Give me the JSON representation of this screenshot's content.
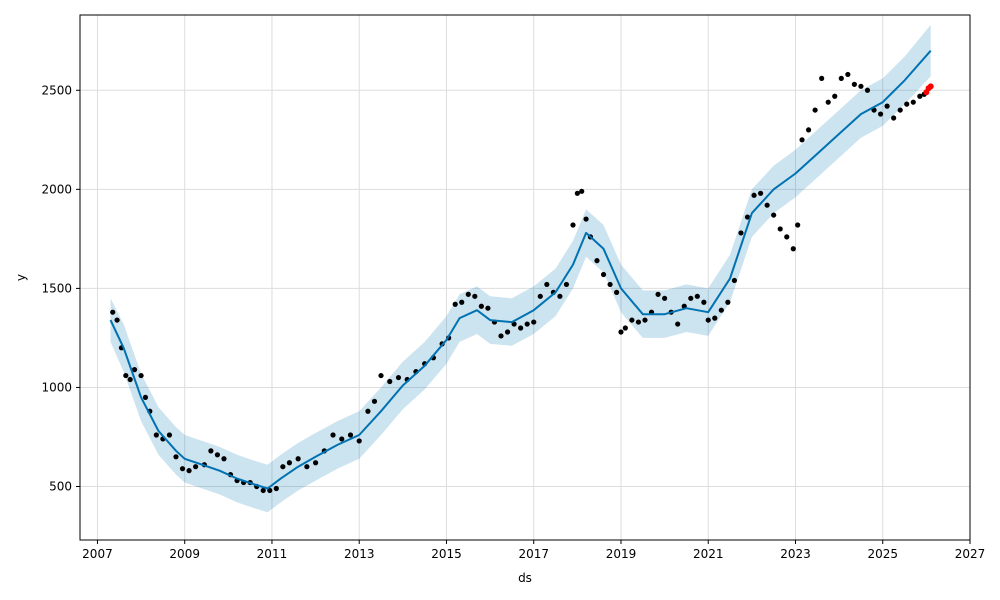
{
  "chart_data": {
    "type": "line",
    "title": "",
    "xlabel": "ds",
    "ylabel": "y",
    "xlim": [
      2006.6,
      2027.0
    ],
    "ylim": [
      230,
      2880
    ],
    "x_ticks": [
      {
        "value": 2007,
        "label": "2007"
      },
      {
        "value": 2009,
        "label": "2009"
      },
      {
        "value": 2011,
        "label": "2011"
      },
      {
        "value": 2013,
        "label": "2013"
      },
      {
        "value": 2015,
        "label": "2015"
      },
      {
        "value": 2017,
        "label": "2017"
      },
      {
        "value": 2019,
        "label": "2019"
      },
      {
        "value": 2021,
        "label": "2021"
      },
      {
        "value": 2023,
        "label": "2023"
      },
      {
        "value": 2025,
        "label": "2025"
      },
      {
        "value": 2027,
        "label": "2027"
      }
    ],
    "y_ticks": [
      {
        "value": 500,
        "label": "500"
      },
      {
        "value": 1000,
        "label": "1000"
      },
      {
        "value": 1500,
        "label": "1500"
      },
      {
        "value": 2000,
        "label": "2000"
      },
      {
        "value": 2500,
        "label": "2500"
      }
    ],
    "grid": true,
    "colors": {
      "forecast_line": "#0072B2",
      "uncertainty_band": "#0072B2",
      "actual_points": "#000000",
      "recent_points": "#ff0000"
    },
    "series": [
      {
        "role": "forecast",
        "x": [
          2007.3,
          2007.6,
          2008.0,
          2008.4,
          2008.8,
          2009.0,
          2009.4,
          2009.8,
          2010.2,
          2010.6,
          2010.9,
          2011.2,
          2011.6,
          2012.0,
          2012.5,
          2013.0,
          2013.5,
          2014.0,
          2014.5,
          2015.0,
          2015.3,
          2015.7,
          2016.0,
          2016.5,
          2017.0,
          2017.5,
          2017.9,
          2018.2,
          2018.6,
          2019.0,
          2019.5,
          2020.0,
          2020.5,
          2021.0,
          2021.5,
          2022.0,
          2022.5,
          2023.0,
          2023.5,
          2024.0,
          2024.5,
          2025.0,
          2025.5,
          2026.1
        ],
        "y": [
          1340,
          1200,
          950,
          780,
          680,
          640,
          610,
          580,
          540,
          510,
          490,
          540,
          600,
          650,
          710,
          760,
          880,
          1010,
          1110,
          1240,
          1350,
          1390,
          1340,
          1330,
          1390,
          1480,
          1620,
          1780,
          1700,
          1500,
          1370,
          1370,
          1400,
          1380,
          1550,
          1880,
          2000,
          2080,
          2180,
          2280,
          2380,
          2440,
          2550,
          2700
        ]
      },
      {
        "role": "uncertainty_upper",
        "x": [
          2007.3,
          2007.6,
          2008.0,
          2008.4,
          2008.8,
          2009.0,
          2009.4,
          2009.8,
          2010.2,
          2010.6,
          2010.9,
          2011.2,
          2011.6,
          2012.0,
          2012.5,
          2013.0,
          2013.5,
          2014.0,
          2014.5,
          2015.0,
          2015.3,
          2015.7,
          2016.0,
          2016.5,
          2017.0,
          2017.5,
          2017.9,
          2018.2,
          2018.6,
          2019.0,
          2019.5,
          2020.0,
          2020.5,
          2021.0,
          2021.5,
          2022.0,
          2022.5,
          2023.0,
          2023.5,
          2024.0,
          2024.5,
          2025.0,
          2025.5,
          2026.1
        ],
        "y": [
          1450,
          1320,
          1070,
          900,
          800,
          760,
          730,
          700,
          660,
          630,
          610,
          660,
          720,
          770,
          830,
          880,
          1000,
          1130,
          1230,
          1360,
          1470,
          1510,
          1460,
          1450,
          1510,
          1600,
          1740,
          1900,
          1820,
          1620,
          1490,
          1490,
          1520,
          1500,
          1670,
          2000,
          2120,
          2200,
          2300,
          2400,
          2500,
          2560,
          2670,
          2830
        ]
      },
      {
        "role": "uncertainty_lower",
        "x": [
          2007.3,
          2007.6,
          2008.0,
          2008.4,
          2008.8,
          2009.0,
          2009.4,
          2009.8,
          2010.2,
          2010.6,
          2010.9,
          2011.2,
          2011.6,
          2012.0,
          2012.5,
          2013.0,
          2013.5,
          2014.0,
          2014.5,
          2015.0,
          2015.3,
          2015.7,
          2016.0,
          2016.5,
          2017.0,
          2017.5,
          2017.9,
          2018.2,
          2018.6,
          2019.0,
          2019.5,
          2020.0,
          2020.5,
          2021.0,
          2021.5,
          2022.0,
          2022.5,
          2023.0,
          2023.5,
          2024.0,
          2024.5,
          2025.0,
          2025.5,
          2026.1
        ],
        "y": [
          1230,
          1080,
          830,
          660,
          560,
          520,
          490,
          460,
          420,
          390,
          370,
          420,
          480,
          530,
          590,
          640,
          760,
          890,
          990,
          1120,
          1230,
          1270,
          1220,
          1210,
          1270,
          1360,
          1500,
          1660,
          1580,
          1380,
          1250,
          1250,
          1280,
          1260,
          1430,
          1760,
          1880,
          1960,
          2060,
          2160,
          2260,
          2320,
          2430,
          2570
        ]
      },
      {
        "role": "actual",
        "x": [
          2007.35,
          2007.45,
          2007.55,
          2007.65,
          2007.75,
          2007.85,
          2008.0,
          2008.1,
          2008.2,
          2008.35,
          2008.5,
          2008.65,
          2008.8,
          2008.95,
          2009.1,
          2009.25,
          2009.45,
          2009.6,
          2009.75,
          2009.9,
          2010.05,
          2010.2,
          2010.35,
          2010.5,
          2010.65,
          2010.8,
          2010.95,
          2011.1,
          2011.25,
          2011.4,
          2011.6,
          2011.8,
          2012.0,
          2012.2,
          2012.4,
          2012.6,
          2012.8,
          2013.0,
          2013.2,
          2013.35,
          2013.5,
          2013.7,
          2013.9,
          2014.1,
          2014.3,
          2014.5,
          2014.7,
          2014.9,
          2015.05,
          2015.2,
          2015.35,
          2015.5,
          2015.65,
          2015.8,
          2015.95,
          2016.1,
          2016.25,
          2016.4,
          2016.55,
          2016.7,
          2016.85,
          2017.0,
          2017.15,
          2017.3,
          2017.45,
          2017.6,
          2017.75,
          2017.9,
          2018.0,
          2018.1,
          2018.2,
          2018.3,
          2018.45,
          2018.6,
          2018.75,
          2018.9,
          2019.0,
          2019.1,
          2019.25,
          2019.4,
          2019.55,
          2019.7,
          2019.85,
          2020.0,
          2020.15,
          2020.3,
          2020.45,
          2020.6,
          2020.75,
          2020.9,
          2021.0,
          2021.15,
          2021.3,
          2021.45,
          2021.6,
          2021.75,
          2021.9,
          2022.05,
          2022.2,
          2022.35,
          2022.5,
          2022.65,
          2022.8,
          2022.95,
          2023.05,
          2023.15,
          2023.3,
          2023.45,
          2023.6,
          2023.75,
          2023.9,
          2024.05,
          2024.2,
          2024.35,
          2024.5,
          2024.65,
          2024.8,
          2024.95,
          2025.1,
          2025.25,
          2025.4,
          2025.55,
          2025.7,
          2025.85,
          2025.95
        ],
        "y": [
          1380,
          1340,
          1200,
          1060,
          1040,
          1090,
          1060,
          950,
          880,
          760,
          740,
          760,
          650,
          590,
          580,
          600,
          610,
          680,
          660,
          640,
          560,
          530,
          520,
          520,
          500,
          480,
          480,
          490,
          600,
          620,
          640,
          600,
          620,
          680,
          760,
          740,
          760,
          730,
          880,
          930,
          1060,
          1030,
          1050,
          1040,
          1080,
          1120,
          1150,
          1220,
          1250,
          1420,
          1430,
          1470,
          1460,
          1410,
          1400,
          1330,
          1260,
          1280,
          1320,
          1300,
          1320,
          1330,
          1460,
          1520,
          1480,
          1460,
          1520,
          1820,
          1980,
          1990,
          1850,
          1760,
          1640,
          1570,
          1520,
          1480,
          1280,
          1300,
          1340,
          1330,
          1340,
          1380,
          1470,
          1450,
          1380,
          1320,
          1410,
          1450,
          1460,
          1430,
          1340,
          1350,
          1390,
          1430,
          1540,
          1780,
          1860,
          1970,
          1980,
          1920,
          1870,
          1800,
          1760,
          1700,
          1820,
          2250,
          2300,
          2400,
          2560,
          2440,
          2470,
          2560,
          2580,
          2530,
          2520,
          2500,
          2400,
          2380,
          2420,
          2360,
          2400,
          2430,
          2440,
          2470,
          2480
        ]
      },
      {
        "role": "recent_actual",
        "x": [
          2026.0,
          2026.05,
          2026.1
        ],
        "y": [
          2490,
          2510,
          2520
        ]
      }
    ]
  }
}
